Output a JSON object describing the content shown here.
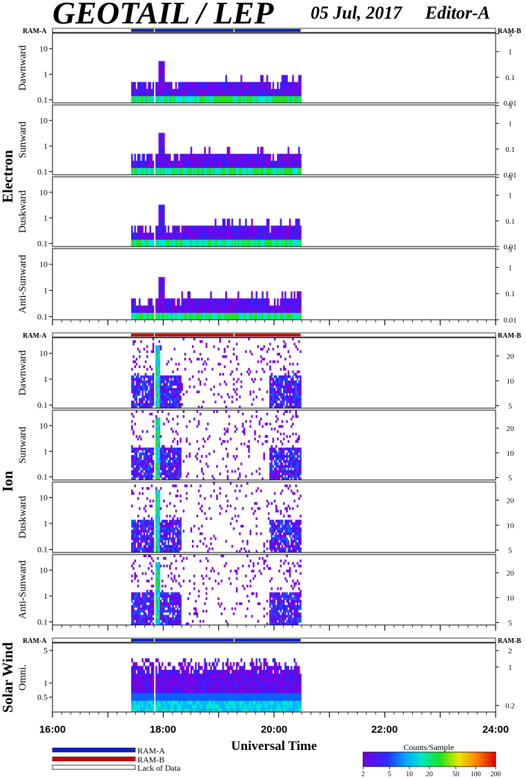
{
  "header": {
    "title": "GEOTAIL / LEP",
    "date": "05 Jul, 2017",
    "editor": "Editor-A"
  },
  "colors": {
    "ram_a": "#0b22c8",
    "ram_b": "#d40000",
    "lack_of_data": "#ffffff"
  },
  "chart_data": {
    "type": "heatmap",
    "x_axis": {
      "label": "Universal Time",
      "range": [
        "16:00",
        "24:00"
      ],
      "tick_labels": [
        "16:00",
        "18:00",
        "20:00",
        "22:00",
        "24:00"
      ],
      "hours": [
        16,
        18,
        20,
        22,
        24
      ]
    },
    "data_coverage": {
      "start_hour": 17.42,
      "end_hour": 20.48
    },
    "groups": [
      {
        "name": "Electron",
        "mode_bar": {
          "left_label": "RAM-A",
          "right_label": "RAM-B",
          "mode": "RAM-A",
          "gaps_hours": [
            17.83,
            19.27
          ]
        },
        "panels": [
          {
            "name": "Dawnward",
            "y_left_ticks": [
              "10",
              "1",
              "0.1"
            ],
            "y_left_values": [
              10,
              1,
              0.1
            ],
            "y_right_ticks": [
              "5",
              "1",
              "0.1",
              "0.01"
            ],
            "y_right_values": [
              5,
              1,
              0.1,
              0.01
            ]
          },
          {
            "name": "Sunward",
            "y_left_ticks": [
              "10",
              "1",
              "0.1"
            ],
            "y_left_values": [
              10,
              1,
              0.1
            ],
            "y_right_ticks": [
              "5",
              "1",
              "0.1",
              "0.01"
            ],
            "y_right_values": [
              5,
              1,
              0.1,
              0.01
            ]
          },
          {
            "name": "Duskward",
            "y_left_ticks": [
              "10",
              "1",
              "0.1"
            ],
            "y_left_values": [
              10,
              1,
              0.1
            ],
            "y_right_ticks": [
              "5",
              "1",
              "0.1",
              "0.01"
            ],
            "y_right_values": [
              5,
              1,
              0.1,
              0.01
            ]
          },
          {
            "name": "Anti-Sunward",
            "y_left_ticks": [
              "10",
              "1",
              "0.1"
            ],
            "y_left_values": [
              10,
              1,
              0.1
            ],
            "y_right_ticks": [
              "5",
              "1",
              "0.1",
              "0.01"
            ],
            "y_right_values": [
              5,
              1,
              0.1,
              0.01
            ]
          }
        ]
      },
      {
        "name": "Ion",
        "mode_bar": {
          "left_label": "RAM-A",
          "right_label": "RAM-B",
          "mode": "RAM-B",
          "gaps_hours": [
            17.83,
            19.27
          ]
        },
        "panels": [
          {
            "name": "Dawnward",
            "y_left_ticks": [
              "10",
              "1",
              "0.1"
            ],
            "y_left_values": [
              10,
              1,
              0.1
            ],
            "y_right_ticks": [
              "20",
              "10",
              "5"
            ],
            "y_right_values": [
              20,
              10,
              5
            ]
          },
          {
            "name": "Sunward",
            "y_left_ticks": [
              "10",
              "1",
              "0.1"
            ],
            "y_left_values": [
              10,
              1,
              0.1
            ],
            "y_right_ticks": [
              "20",
              "10",
              "5"
            ],
            "y_right_values": [
              20,
              10,
              5
            ]
          },
          {
            "name": "Duskward",
            "y_left_ticks": [
              "10",
              "1",
              "0.1"
            ],
            "y_left_values": [
              10,
              1,
              0.1
            ],
            "y_right_ticks": [
              "20",
              "10",
              "5"
            ],
            "y_right_values": [
              20,
              10,
              5
            ]
          },
          {
            "name": "Anti-Sunward",
            "y_left_ticks": [
              "10",
              "1",
              "0.1"
            ],
            "y_left_values": [
              10,
              1,
              0.1
            ],
            "y_right_ticks": [
              "20",
              "10",
              "5"
            ],
            "y_right_values": [
              20,
              10,
              5
            ]
          }
        ]
      },
      {
        "name": "Solar Wind",
        "mode_bar": {
          "left_label": "RAM-A",
          "right_label": "RAM-B",
          "mode": "RAM-A",
          "gaps_hours": [
            17.83,
            19.27
          ]
        },
        "panels": [
          {
            "name": "Omni.",
            "y_left_ticks": [
              "5",
              "1",
              "0.5"
            ],
            "y_left_values": [
              5,
              1,
              0.5
            ],
            "y_right_ticks": [
              "2",
              "1",
              "0.2"
            ],
            "y_right_values": [
              2,
              1,
              0.2
            ]
          }
        ]
      }
    ],
    "colorbar": {
      "label": "Counts/Sample",
      "tick_labels": [
        "2",
        "5",
        "10",
        "20",
        "50",
        "100",
        "200"
      ],
      "values": [
        2,
        5,
        10,
        20,
        50,
        100,
        200
      ],
      "scale": "log"
    },
    "legend": [
      {
        "label": "RAM-A",
        "color": "#0b22c8"
      },
      {
        "label": "RAM-B",
        "color": "#d40000"
      },
      {
        "label": "Lack of Data",
        "color": "#ffffff"
      }
    ]
  }
}
